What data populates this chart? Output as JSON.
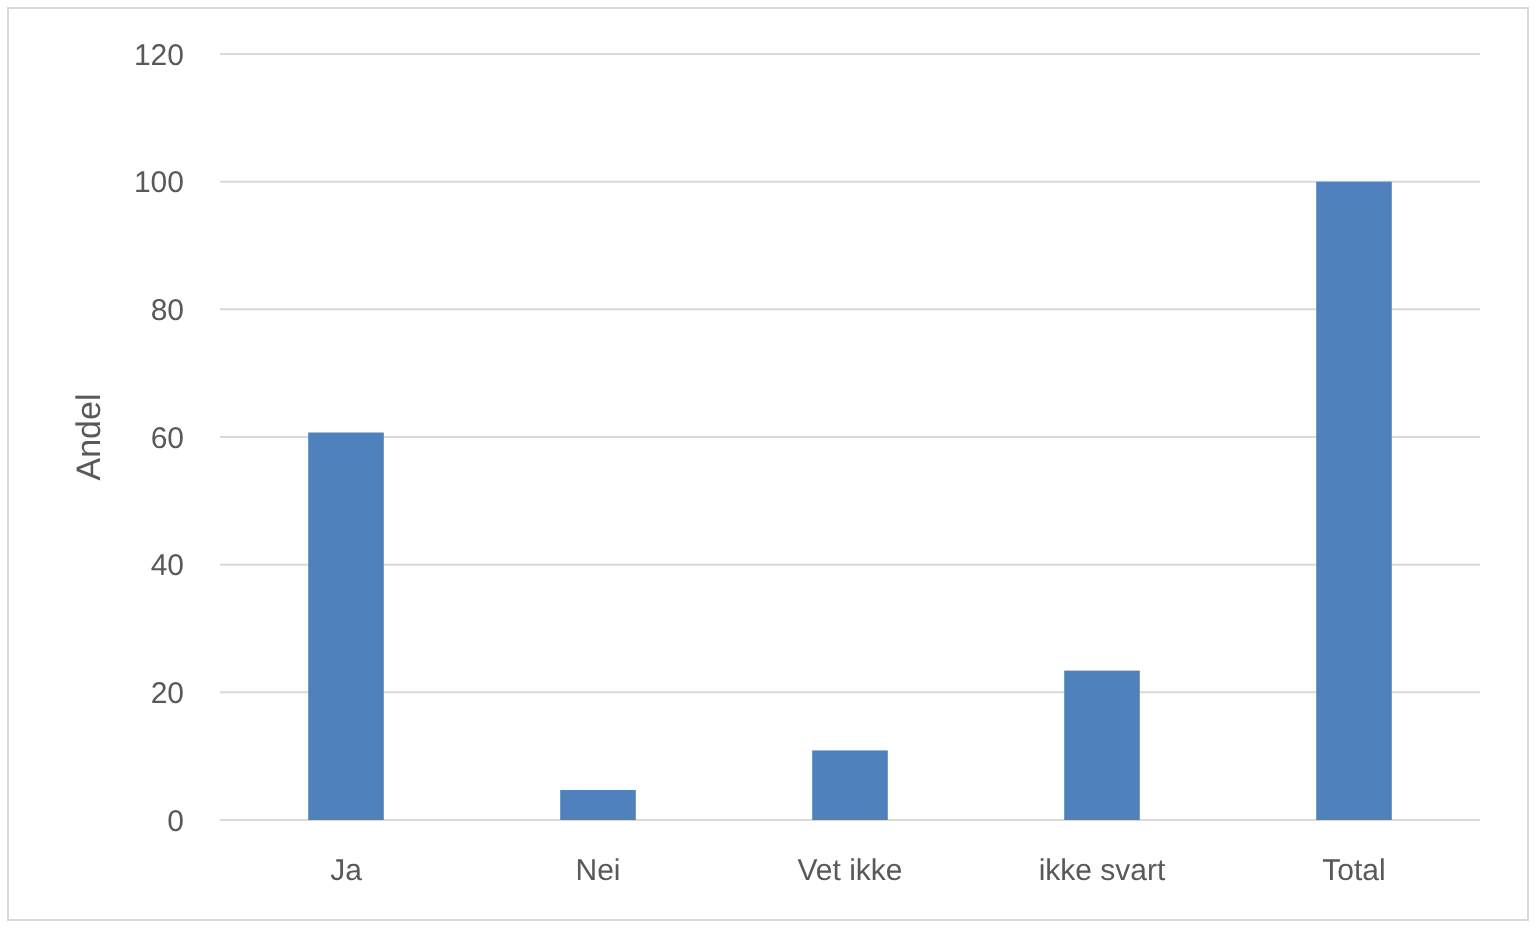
{
  "chart_data": {
    "type": "bar",
    "ylabel": "Andel",
    "categories": [
      "Ja",
      "Nei",
      "Vet ikke",
      "ikke svart",
      "Total"
    ],
    "values": [
      60.7,
      4.7,
      10.9,
      23.4,
      100
    ],
    "color": "#4f81bd",
    "ylim": [
      0,
      120
    ],
    "yticks": [
      0,
      20,
      40,
      60,
      80,
      100,
      120
    ],
    "grid": "y"
  }
}
